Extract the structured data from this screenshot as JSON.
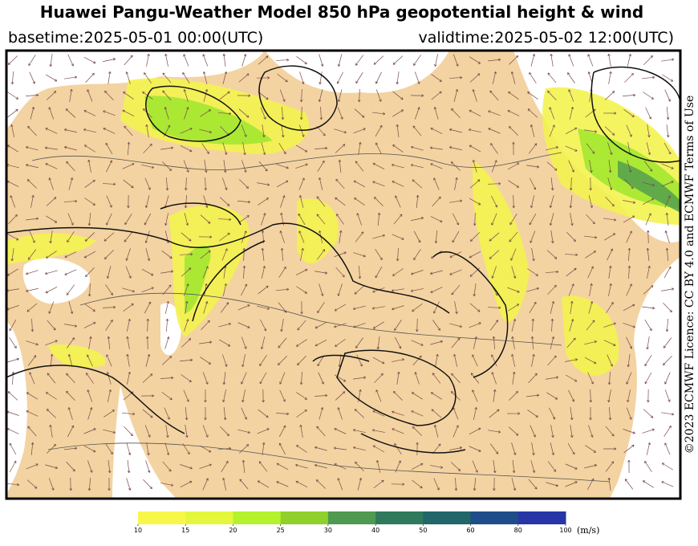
{
  "header": {
    "title": "Huawei Pangu-Weather Model 850 hPa geopotential height & wind",
    "basetime": "basetime:2025-05-01 00:00(UTC)",
    "validtime": "validtime:2025-05-02 12:00(UTC)"
  },
  "credit": "©2023 ECMWF Licence: CC BY 4.0 and ECMWF Terms of Use",
  "colorbar": {
    "ticks": [
      10,
      15,
      20,
      25,
      30,
      40,
      50,
      60,
      80,
      100
    ],
    "colors": [
      "#f7f74a",
      "#e4f73c",
      "#b4f22e",
      "#8fd12a",
      "#4f9a50",
      "#2f7a5c",
      "#216668",
      "#1e4d8a",
      "#2636a6"
    ],
    "unit": "(m/s)"
  }
}
